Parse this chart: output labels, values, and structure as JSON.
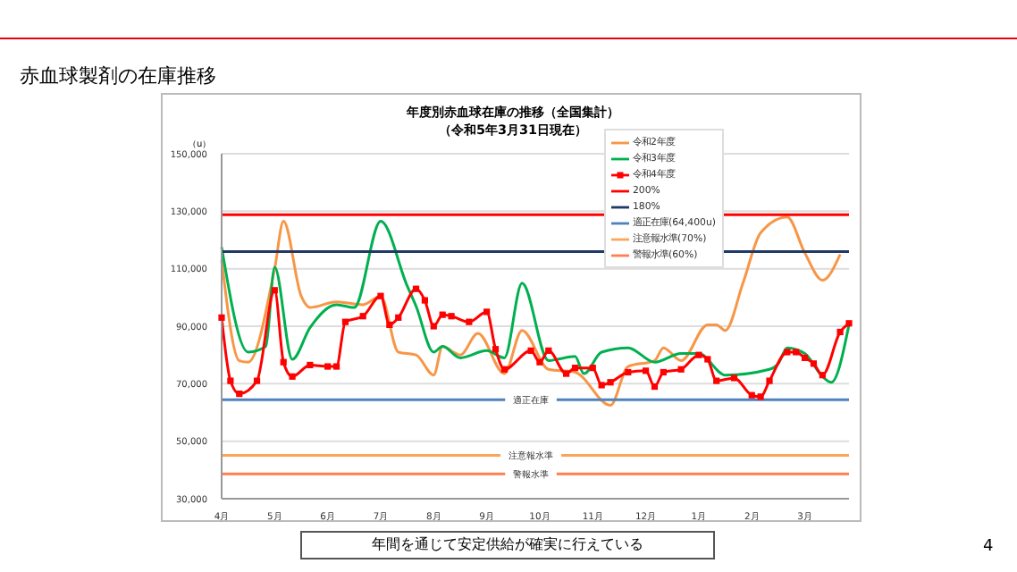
{
  "chart_data": {
    "type": "line",
    "title": "年度別赤血球在庫の推移（全国集計）",
    "subtitle": "（令和5年3月31日現在）",
    "ylabel": "（u）",
    "annotations": [
      "赤血球製剤の在庫推移",
      "年間を通じて安定供給が確実に行えている",
      "4",
      {
        "text": "適正在庫",
        "y": 64400
      },
      {
        "text": "注意報水準",
        "y": 45080
      },
      {
        "text": "警報水準",
        "y": 38640
      }
    ],
    "categories": [
      "4月",
      null,
      null,
      null,
      null,
      null,
      "5月",
      null,
      null,
      null,
      null,
      null,
      "6月",
      null,
      null,
      null,
      null,
      null,
      "7月",
      null,
      null,
      null,
      null,
      null,
      "8月",
      null,
      null,
      null,
      null,
      null,
      "9月",
      null,
      null,
      null,
      null,
      null,
      "10月",
      null,
      null,
      null,
      null,
      null,
      "11月",
      null,
      null,
      null,
      null,
      null,
      "12月",
      null,
      null,
      null,
      null,
      null,
      "1月",
      null,
      null,
      null,
      null,
      null,
      "2月",
      null,
      null,
      null,
      null,
      null,
      "3月",
      null,
      null,
      null,
      null,
      null
    ],
    "ylim": [
      30000,
      150000
    ],
    "yticks": [
      {
        "value": 30000,
        "label": "30,000"
      },
      {
        "value": 50000,
        "label": "50,000"
      },
      {
        "value": 70000,
        "label": "70,000"
      },
      {
        "value": 90000,
        "label": "90,000"
      },
      {
        "value": 110000,
        "label": "110,000"
      },
      {
        "value": 130000,
        "label": "130,000"
      },
      {
        "value": 150000,
        "label": "150,000"
      }
    ],
    "grid": "y",
    "legend": "top right",
    "series": [
      {
        "name": "令和2年度",
        "color": "#f79646",
        "marker": "none",
        "values": [
          113000,
          null,
          78000,
          77500,
          null,
          null,
          110000,
          126500,
          null,
          100500,
          96500,
          null,
          null,
          98500,
          null,
          null,
          97500,
          null,
          100500,
          null,
          81000,
          null,
          80000,
          null,
          73000,
          83000,
          null,
          80000,
          null,
          87500,
          null,
          null,
          73500,
          null,
          88500,
          null,
          null,
          75000,
          null,
          null,
          74000,
          null,
          null,
          null,
          62500,
          null,
          76000,
          null,
          null,
          78000,
          82500,
          null,
          78000,
          null,
          null,
          90500,
          90500,
          88500,
          null,
          105000,
          null,
          122500,
          null,
          null,
          128000,
          null,
          115500,
          null,
          106000,
          null,
          115000,
          null
        ]
      },
      {
        "name": "令和3年度",
        "color": "#00b050",
        "marker": "none",
        "values": [
          117500,
          null,
          null,
          81000,
          null,
          83000,
          110500,
          null,
          78500,
          null,
          89500,
          null,
          null,
          97500,
          null,
          96500,
          null,
          null,
          126500,
          null,
          null,
          104000,
          97000,
          null,
          81000,
          83000,
          null,
          79000,
          null,
          null,
          81500,
          null,
          79000,
          null,
          105000,
          null,
          null,
          78000,
          78500,
          null,
          79500,
          73500,
          null,
          81000,
          null,
          null,
          82500,
          null,
          null,
          77500,
          null,
          null,
          80500,
          null,
          80500,
          null,
          null,
          73000,
          null,
          null,
          null,
          null,
          75000,
          77000,
          82500,
          null,
          80500,
          null,
          72500,
          70500,
          null,
          90500
        ]
      },
      {
        "name": "令和4年度",
        "color": "#ff0000",
        "marker": "square",
        "values": [
          93000,
          71000,
          66500,
          null,
          71000,
          null,
          102500,
          77500,
          72500,
          null,
          76500,
          null,
          76000,
          76000,
          91500,
          null,
          93500,
          null,
          100500,
          90500,
          93000,
          null,
          103000,
          99000,
          90000,
          94000,
          93500,
          null,
          91500,
          null,
          95000,
          82000,
          75000,
          null,
          null,
          81500,
          77500,
          81500,
          null,
          73500,
          75500,
          null,
          75500,
          69500,
          70500,
          null,
          74000,
          null,
          74500,
          69000,
          74000,
          null,
          75000,
          null,
          80000,
          78500,
          71000,
          null,
          72000,
          null,
          66000,
          65500,
          71000,
          null,
          81000,
          81000,
          79000,
          77000,
          73000,
          null,
          88000,
          91000
        ]
      },
      {
        "name": "200%",
        "color": "#ff0000",
        "marker": "none",
        "values": [
          128800,
          null,
          null,
          null,
          null,
          null,
          null,
          null,
          null,
          null,
          null,
          null,
          null,
          null,
          null,
          null,
          null,
          null,
          null,
          null,
          null,
          null,
          null,
          null,
          null,
          null,
          null,
          null,
          null,
          null,
          null,
          null,
          null,
          null,
          null,
          null,
          null,
          null,
          null,
          null,
          null,
          null,
          null,
          null,
          null,
          null,
          null,
          null,
          null,
          null,
          null,
          null,
          null,
          null,
          null,
          null,
          null,
          null,
          null,
          null,
          null,
          null,
          null,
          null,
          null,
          null,
          null,
          null,
          null,
          null,
          null,
          128800
        ]
      },
      {
        "name": "180%",
        "color": "#1f3864",
        "marker": "none",
        "values": [
          115920,
          null,
          null,
          null,
          null,
          null,
          null,
          null,
          null,
          null,
          null,
          null,
          null,
          null,
          null,
          null,
          null,
          null,
          null,
          null,
          null,
          null,
          null,
          null,
          null,
          null,
          null,
          null,
          null,
          null,
          null,
          null,
          null,
          null,
          null,
          null,
          null,
          null,
          null,
          null,
          null,
          null,
          null,
          null,
          null,
          null,
          null,
          null,
          null,
          null,
          null,
          null,
          null,
          null,
          null,
          null,
          null,
          null,
          null,
          null,
          null,
          null,
          null,
          null,
          null,
          null,
          null,
          null,
          null,
          null,
          null,
          115920
        ]
      },
      {
        "name": "適正在庫(64,400u)",
        "color": "#4f81bd",
        "marker": "none",
        "values": [
          64400,
          null,
          null,
          null,
          null,
          null,
          null,
          null,
          null,
          null,
          null,
          null,
          null,
          null,
          null,
          null,
          null,
          null,
          null,
          null,
          null,
          null,
          null,
          null,
          null,
          null,
          null,
          null,
          null,
          null,
          null,
          null,
          null,
          null,
          null,
          null,
          null,
          null,
          null,
          null,
          null,
          null,
          null,
          null,
          null,
          null,
          null,
          null,
          null,
          null,
          null,
          null,
          null,
          null,
          null,
          null,
          null,
          null,
          null,
          null,
          null,
          null,
          null,
          null,
          null,
          null,
          null,
          null,
          null,
          null,
          null,
          64400
        ]
      },
      {
        "name": "注意報水準(70%)",
        "color": "#f9a65a",
        "marker": "none",
        "values": [
          45080,
          null,
          null,
          null,
          null,
          null,
          null,
          null,
          null,
          null,
          null,
          null,
          null,
          null,
          null,
          null,
          null,
          null,
          null,
          null,
          null,
          null,
          null,
          null,
          null,
          null,
          null,
          null,
          null,
          null,
          null,
          null,
          null,
          null,
          null,
          null,
          null,
          null,
          null,
          null,
          null,
          null,
          null,
          null,
          null,
          null,
          null,
          null,
          null,
          null,
          null,
          null,
          null,
          null,
          null,
          null,
          null,
          null,
          null,
          null,
          null,
          null,
          null,
          null,
          null,
          null,
          null,
          null,
          null,
          null,
          null,
          45080
        ]
      },
      {
        "name": "警報水準(60%)",
        "color": "#ff7f50",
        "marker": "none",
        "values": [
          38640,
          null,
          null,
          null,
          null,
          null,
          null,
          null,
          null,
          null,
          null,
          null,
          null,
          null,
          null,
          null,
          null,
          null,
          null,
          null,
          null,
          null,
          null,
          null,
          null,
          null,
          null,
          null,
          null,
          null,
          null,
          null,
          null,
          null,
          null,
          null,
          null,
          null,
          null,
          null,
          null,
          null,
          null,
          null,
          null,
          null,
          null,
          null,
          null,
          null,
          null,
          null,
          null,
          null,
          null,
          null,
          null,
          null,
          null,
          null,
          null,
          null,
          null,
          null,
          null,
          null,
          null,
          null,
          null,
          null,
          null,
          38640
        ]
      }
    ]
  }
}
